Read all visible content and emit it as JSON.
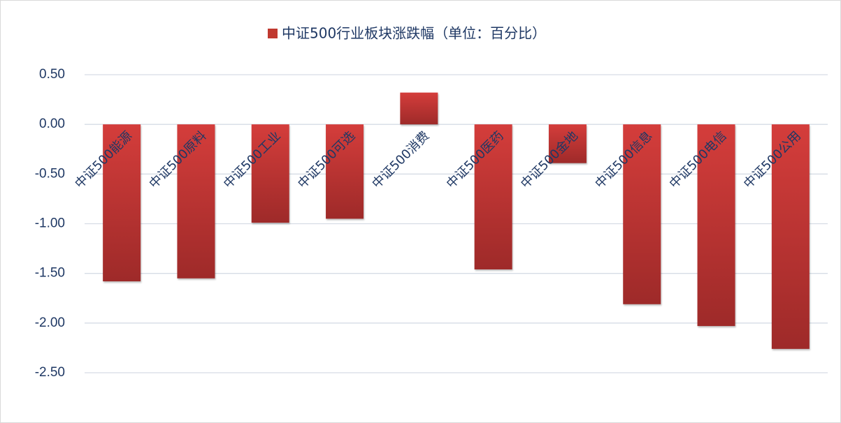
{
  "chart_data": {
    "type": "bar",
    "title": "中证500行业板块涨跌幅（单位：百分比）",
    "categories": [
      "中证500能源",
      "中证500原料",
      "中证500工业",
      "中证500可选",
      "中证500消费",
      "中证500医药",
      "中证500金地",
      "中证500信息",
      "中证500电信",
      "中证500公用"
    ],
    "values": [
      -1.58,
      -1.55,
      -0.99,
      -0.95,
      0.32,
      -1.46,
      -0.39,
      -1.81,
      -2.03,
      -2.26
    ],
    "color": "#c0392f",
    "ylim": [
      -2.5,
      0.5
    ],
    "yticks": [
      {
        "value": 0.5,
        "label": "0.50"
      },
      {
        "value": 0,
        "label": "0.00"
      },
      {
        "value": -0.5,
        "label": "-0.50"
      },
      {
        "value": -1,
        "label": "-1.00"
      },
      {
        "value": -1.5,
        "label": "-1.50"
      },
      {
        "value": -2,
        "label": "-2.00"
      },
      {
        "value": -2.5,
        "label": "-2.50"
      }
    ],
    "grid": true
  }
}
